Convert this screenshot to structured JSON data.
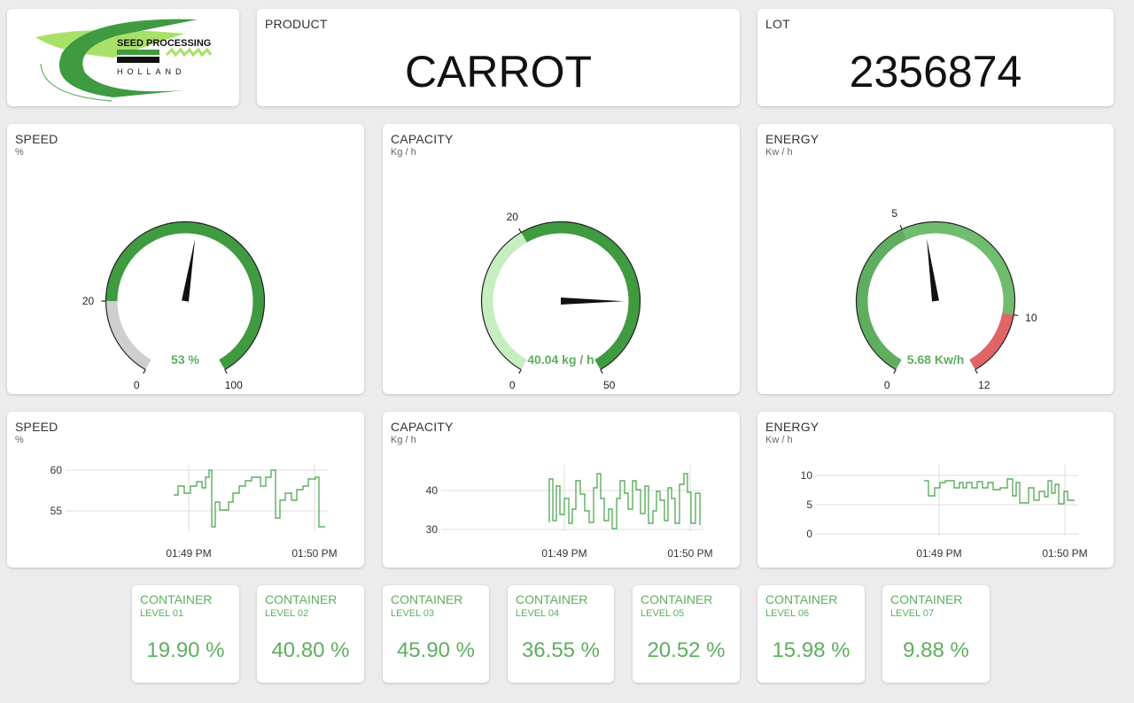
{
  "logo": {
    "line1": "SEED PROCESSING",
    "line2": "HOLLAND"
  },
  "product": {
    "label": "PRODUCT",
    "value": "CARROT"
  },
  "lot": {
    "label": "LOT",
    "value": "2356874"
  },
  "gauges": [
    {
      "title": "SPEED",
      "unit": "%",
      "min": 0,
      "max": 100,
      "value": 53,
      "display": "53 %",
      "tick_labels": [
        "0",
        "20",
        "100"
      ],
      "segments": [
        {
          "from": 0,
          "to": 20,
          "color": "#cfcfcf"
        },
        {
          "from": 20,
          "to": 100,
          "color": "#3f9a40"
        }
      ]
    },
    {
      "title": "CAPACITY",
      "unit": "Kg / h",
      "min": 0,
      "max": 50,
      "value": 40.04,
      "display": "40.04 kg / h",
      "tick_labels": [
        "0",
        "20",
        "50"
      ],
      "segments": [
        {
          "from": 0,
          "to": 20,
          "color": "#c6eec1"
        },
        {
          "from": 20,
          "to": 50,
          "color": "#3f9a40"
        }
      ]
    },
    {
      "title": "ENERGY",
      "unit": "Kw / h",
      "min": 0,
      "max": 12,
      "value": 5.68,
      "display": "5.68 Kw/h",
      "tick_labels": [
        "0",
        "5",
        "10",
        "12"
      ],
      "segments": [
        {
          "from": 0,
          "to": 5,
          "color": "#5fae60"
        },
        {
          "from": 5,
          "to": 10,
          "color": "#6fbd6d"
        },
        {
          "from": 10,
          "to": 12,
          "color": "#e06666"
        }
      ]
    }
  ],
  "trends": [
    {
      "title": "SPEED",
      "unit": "%",
      "y_ticks": [
        "60",
        "55"
      ],
      "x_ticks": [
        "01:49 PM",
        "01:50 PM"
      ]
    },
    {
      "title": "CAPACITY",
      "unit": "Kg / h",
      "y_ticks": [
        "40",
        "30"
      ],
      "x_ticks": [
        "01:49 PM",
        "01:50 PM"
      ]
    },
    {
      "title": "ENERGY",
      "unit": "Kw / h",
      "y_ticks": [
        "10",
        "5",
        "0"
      ],
      "x_ticks": [
        "01:49 PM",
        "01:50 PM"
      ]
    }
  ],
  "containers": [
    {
      "label": "CONTAINER",
      "level": "LEVEL 01",
      "value": "19.90 %"
    },
    {
      "label": "CONTAINER",
      "level": "LEVEL 02",
      "value": "40.80 %"
    },
    {
      "label": "CONTAINER",
      "level": "LEVEL 03",
      "value": "45.90 %"
    },
    {
      "label": "CONTAINER",
      "level": "LEVEL 04",
      "value": "36.55 %"
    },
    {
      "label": "CONTAINER",
      "level": "LEVEL 05",
      "value": "20.52 %"
    },
    {
      "label": "CONTAINER",
      "level": "LEVEL 06",
      "value": "15.98 %"
    },
    {
      "label": "CONTAINER",
      "level": "LEVEL 07",
      "value": "9.88 %"
    }
  ],
  "colors": {
    "accent": "#5fae60",
    "dark_green": "#3f9a40",
    "red": "#e06666"
  }
}
